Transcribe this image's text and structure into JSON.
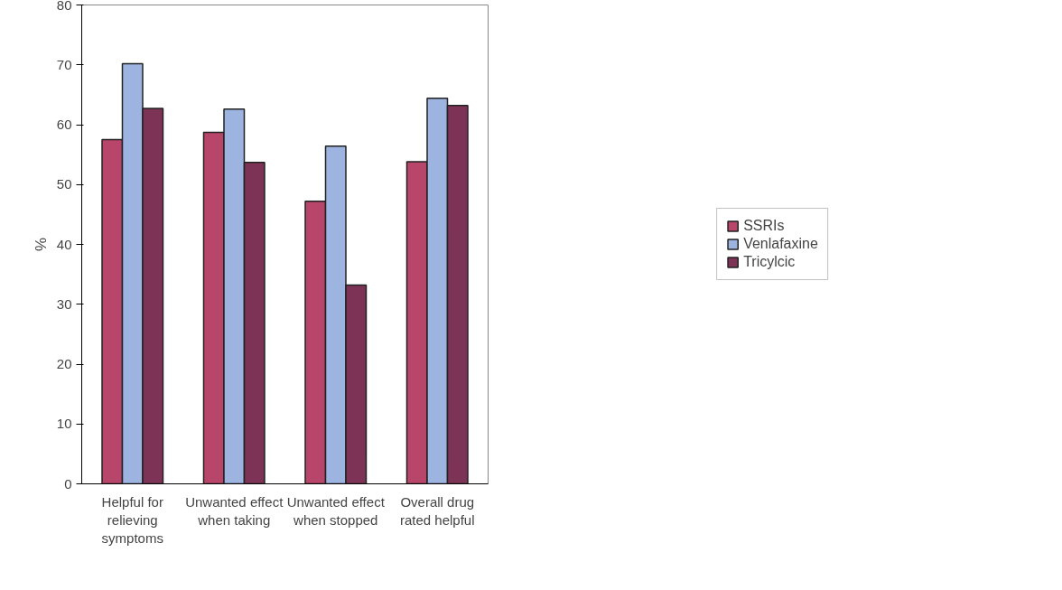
{
  "chart_data": {
    "type": "bar",
    "ylabel": "%",
    "categories": [
      "Helpful for relieving symptoms",
      "Unwanted effect when taking",
      "Unwanted effect when stopped",
      "Overall drug rated helpful"
    ],
    "series": [
      {
        "name": "SSRIs",
        "color": "#b8456a",
        "values": [
          57.5,
          58.7,
          47.2,
          53.8
        ]
      },
      {
        "name": "Venlafaxine",
        "color": "#9db3e0",
        "values": [
          70.2,
          62.6,
          56.4,
          64.4
        ]
      },
      {
        "name": "Tricylcic",
        "color": "#7d3355",
        "values": [
          62.7,
          53.7,
          33.2,
          63.2
        ]
      }
    ],
    "ylim": [
      0,
      80
    ],
    "yticks": [
      0,
      10,
      20,
      30,
      40,
      50,
      60,
      70,
      80
    ],
    "grid": false,
    "legend": "right"
  }
}
